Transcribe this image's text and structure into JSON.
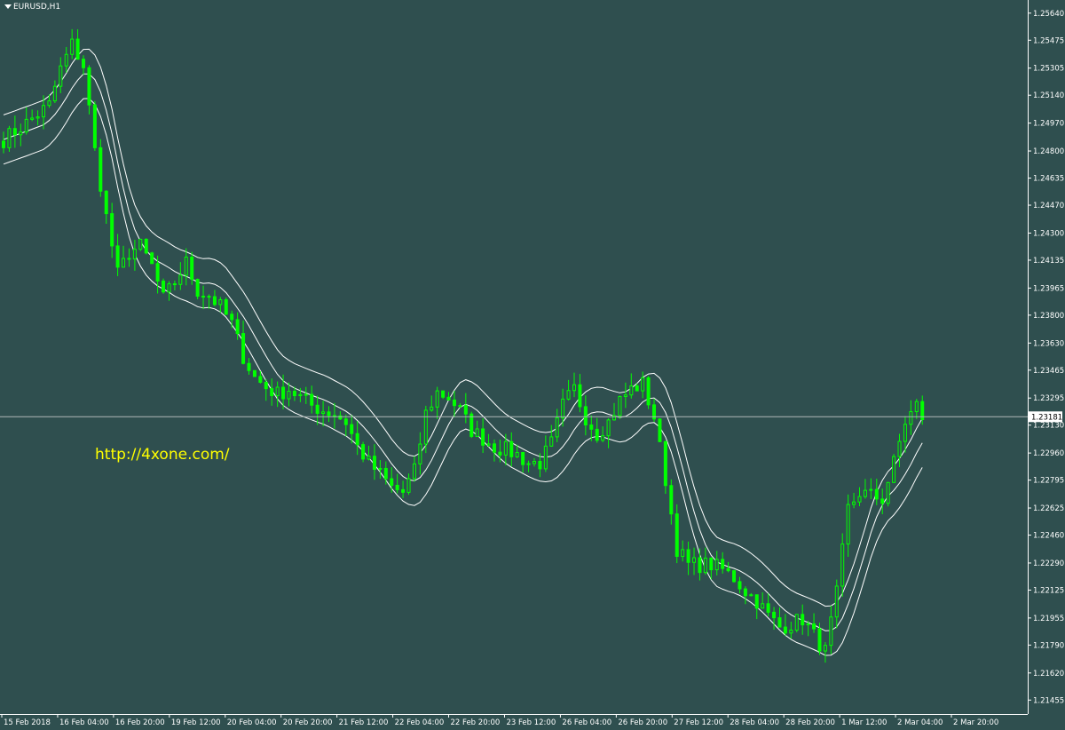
{
  "chart_header": {
    "symbol_label": "EURUSD,H1",
    "dropdown_icon": "triangle-down-icon"
  },
  "watermark": {
    "text": "http://4xone.com/"
  },
  "colors": {
    "background": "#2f4f4f",
    "bull_candle": "#00ff00",
    "bear_candle": "#00ff00",
    "band_line": "#ffffff",
    "bid_line": "#b0b8b8",
    "text": "#ffffff"
  },
  "chart_data": {
    "type": "candlestick",
    "title": "",
    "symbol": "EURUSD",
    "timeframe": "H1",
    "xlabel": "",
    "ylabel": "",
    "ylim": [
      1.2137,
      1.2572
    ],
    "current_price": 1.23181,
    "y_ticks": [
      "1.25640",
      "1.25475",
      "1.25305",
      "1.25140",
      "1.24970",
      "1.24800",
      "1.24635",
      "1.24470",
      "1.24300",
      "1.24135",
      "1.23965",
      "1.23800",
      "1.23630",
      "1.23465",
      "1.23295",
      "1.23130",
      "1.22960",
      "1.22795",
      "1.22625",
      "1.22460",
      "1.22290",
      "1.22125",
      "1.21955",
      "1.21790",
      "1.21620",
      "1.21455"
    ],
    "x_ticks": [
      "15 Feb 2018",
      "16 Feb 04:00",
      "16 Feb 20:00",
      "19 Feb 12:00",
      "20 Feb 04:00",
      "20 Feb 20:00",
      "21 Feb 12:00",
      "22 Feb 04:00",
      "22 Feb 20:00",
      "23 Feb 12:00",
      "26 Feb 04:00",
      "26 Feb 20:00",
      "27 Feb 12:00",
      "28 Feb 04:00",
      "28 Feb 20:00",
      "1 Mar 12:00",
      "2 Mar 04:00",
      "2 Mar 20:00"
    ],
    "close_path": [
      [
        0,
        1.2487
      ],
      [
        4,
        1.2497
      ],
      [
        8,
        1.2508
      ],
      [
        10,
        1.253
      ],
      [
        12,
        1.2545
      ],
      [
        14,
        1.2532
      ],
      [
        16,
        1.248
      ],
      [
        18,
        1.244
      ],
      [
        20,
        1.2405
      ],
      [
        22,
        1.2418
      ],
      [
        24,
        1.2422
      ],
      [
        26,
        1.241
      ],
      [
        28,
        1.239
      ],
      [
        30,
        1.24
      ],
      [
        32,
        1.2412
      ],
      [
        34,
        1.2395
      ],
      [
        36,
        1.2392
      ],
      [
        38,
        1.2385
      ],
      [
        40,
        1.2375
      ],
      [
        42,
        1.2355
      ],
      [
        44,
        1.2342
      ],
      [
        46,
        1.2336
      ],
      [
        48,
        1.2332
      ],
      [
        50,
        1.2335
      ],
      [
        52,
        1.233
      ],
      [
        54,
        1.2325
      ],
      [
        56,
        1.2322
      ],
      [
        58,
        1.232
      ],
      [
        60,
        1.2315
      ],
      [
        62,
        1.23
      ],
      [
        64,
        1.229
      ],
      [
        66,
        1.2283
      ],
      [
        68,
        1.2275
      ],
      [
        70,
        1.2272
      ],
      [
        72,
        1.2285
      ],
      [
        74,
        1.232
      ],
      [
        76,
        1.2333
      ],
      [
        78,
        1.233
      ],
      [
        80,
        1.2322
      ],
      [
        82,
        1.231
      ],
      [
        84,
        1.2305
      ],
      [
        86,
        1.23
      ],
      [
        88,
        1.2298
      ],
      [
        90,
        1.2295
      ],
      [
        92,
        1.229
      ],
      [
        94,
        1.229
      ],
      [
        96,
        1.2302
      ],
      [
        98,
        1.2325
      ],
      [
        100,
        1.2335
      ],
      [
        102,
        1.2318
      ],
      [
        104,
        1.2308
      ],
      [
        106,
        1.2315
      ],
      [
        108,
        1.2328
      ],
      [
        110,
        1.2335
      ],
      [
        112,
        1.2338
      ],
      [
        114,
        1.2318
      ],
      [
        116,
        1.228
      ],
      [
        118,
        1.2238
      ],
      [
        120,
        1.2228
      ],
      [
        122,
        1.2228
      ],
      [
        124,
        1.2228
      ],
      [
        126,
        1.2225
      ],
      [
        128,
        1.222
      ],
      [
        130,
        1.2212
      ],
      [
        132,
        1.2206
      ],
      [
        134,
        1.2197
      ],
      [
        136,
        1.219
      ],
      [
        138,
        1.2192
      ],
      [
        140,
        1.2195
      ],
      [
        142,
        1.2185
      ],
      [
        144,
        1.2175
      ],
      [
        146,
        1.221
      ],
      [
        148,
        1.2262
      ],
      [
        150,
        1.2272
      ],
      [
        152,
        1.227
      ],
      [
        154,
        1.2268
      ],
      [
        156,
        1.229
      ],
      [
        158,
        1.2315
      ],
      [
        160,
        1.2325
      ],
      [
        161,
        1.2318
      ]
    ],
    "series": [
      {
        "name": "",
        "type": "candles"
      },
      {
        "name": "",
        "type": "line"
      },
      {
        "name": "",
        "type": "line"
      },
      {
        "name": "",
        "type": "line"
      }
    ],
    "band_offset": 0.0015,
    "grid": false,
    "legend": "none"
  }
}
